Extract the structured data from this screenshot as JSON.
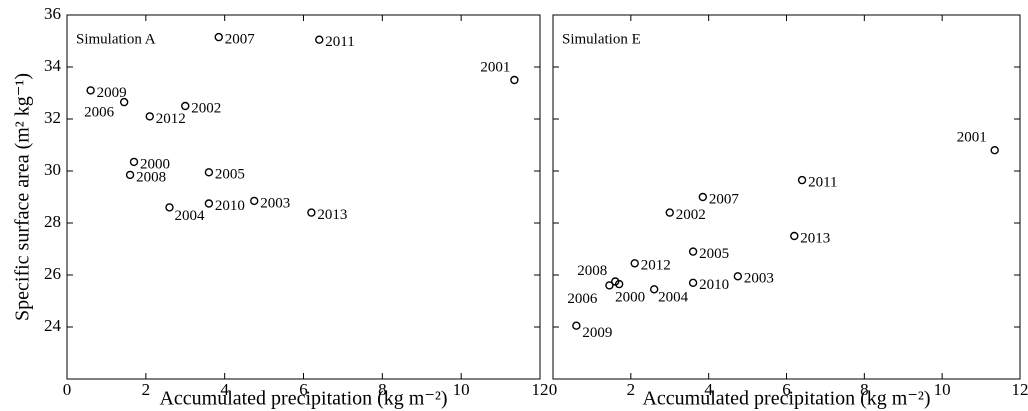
{
  "chart_data": [
    {
      "type": "scatter",
      "annotation": "Simulation A",
      "xlabel": "Accumulated precipitation (kg m⁻²)",
      "ylabel": "Specific surface area (m² kg⁻¹)",
      "point_labels": [
        "2000",
        "2001",
        "2002",
        "2003",
        "2004",
        "2005",
        "2006",
        "2007",
        "2008",
        "2009",
        "2010",
        "2011",
        "2012",
        "2013"
      ],
      "x": [
        1.7,
        11.35,
        3.0,
        4.75,
        2.6,
        3.6,
        1.45,
        3.85,
        1.6,
        0.6,
        3.6,
        6.4,
        2.1,
        6.2
      ],
      "values": [
        30.35,
        33.5,
        32.5,
        28.85,
        28.6,
        29.95,
        32.65,
        35.15,
        29.85,
        33.1,
        28.75,
        35.05,
        32.1,
        28.4
      ],
      "color": "#000000",
      "xlim": [
        0,
        12
      ],
      "xticks": [
        0,
        2,
        4,
        6,
        8,
        10,
        12
      ],
      "ylim": [
        22,
        36
      ],
      "yticks": [
        24,
        26,
        28,
        30,
        32,
        34,
        36
      ]
    },
    {
      "type": "scatter",
      "annotation": "Simulation E",
      "xlabel": "Accumulated precipitation (kg m⁻²)",
      "point_labels": [
        "2000",
        "2001",
        "2002",
        "2003",
        "2004",
        "2005",
        "2006",
        "2007",
        "2008",
        "2009",
        "2010",
        "2011",
        "2012",
        "2013"
      ],
      "x": [
        1.7,
        11.35,
        3.0,
        4.75,
        2.6,
        3.6,
        1.45,
        3.85,
        1.6,
        0.6,
        3.6,
        6.4,
        2.1,
        6.2
      ],
      "values": [
        25.65,
        30.8,
        28.4,
        25.95,
        25.45,
        26.9,
        25.6,
        29.0,
        25.75,
        24.05,
        25.7,
        29.65,
        26.45,
        27.5
      ],
      "color": "#000000",
      "xlim": [
        0,
        12
      ],
      "xticks": [
        0,
        2,
        4,
        6,
        8,
        10,
        12
      ],
      "ylim": [
        22,
        36
      ],
      "yticks": [
        24,
        26,
        28,
        30,
        32,
        34,
        36
      ],
      "ytick_labels": false
    }
  ]
}
